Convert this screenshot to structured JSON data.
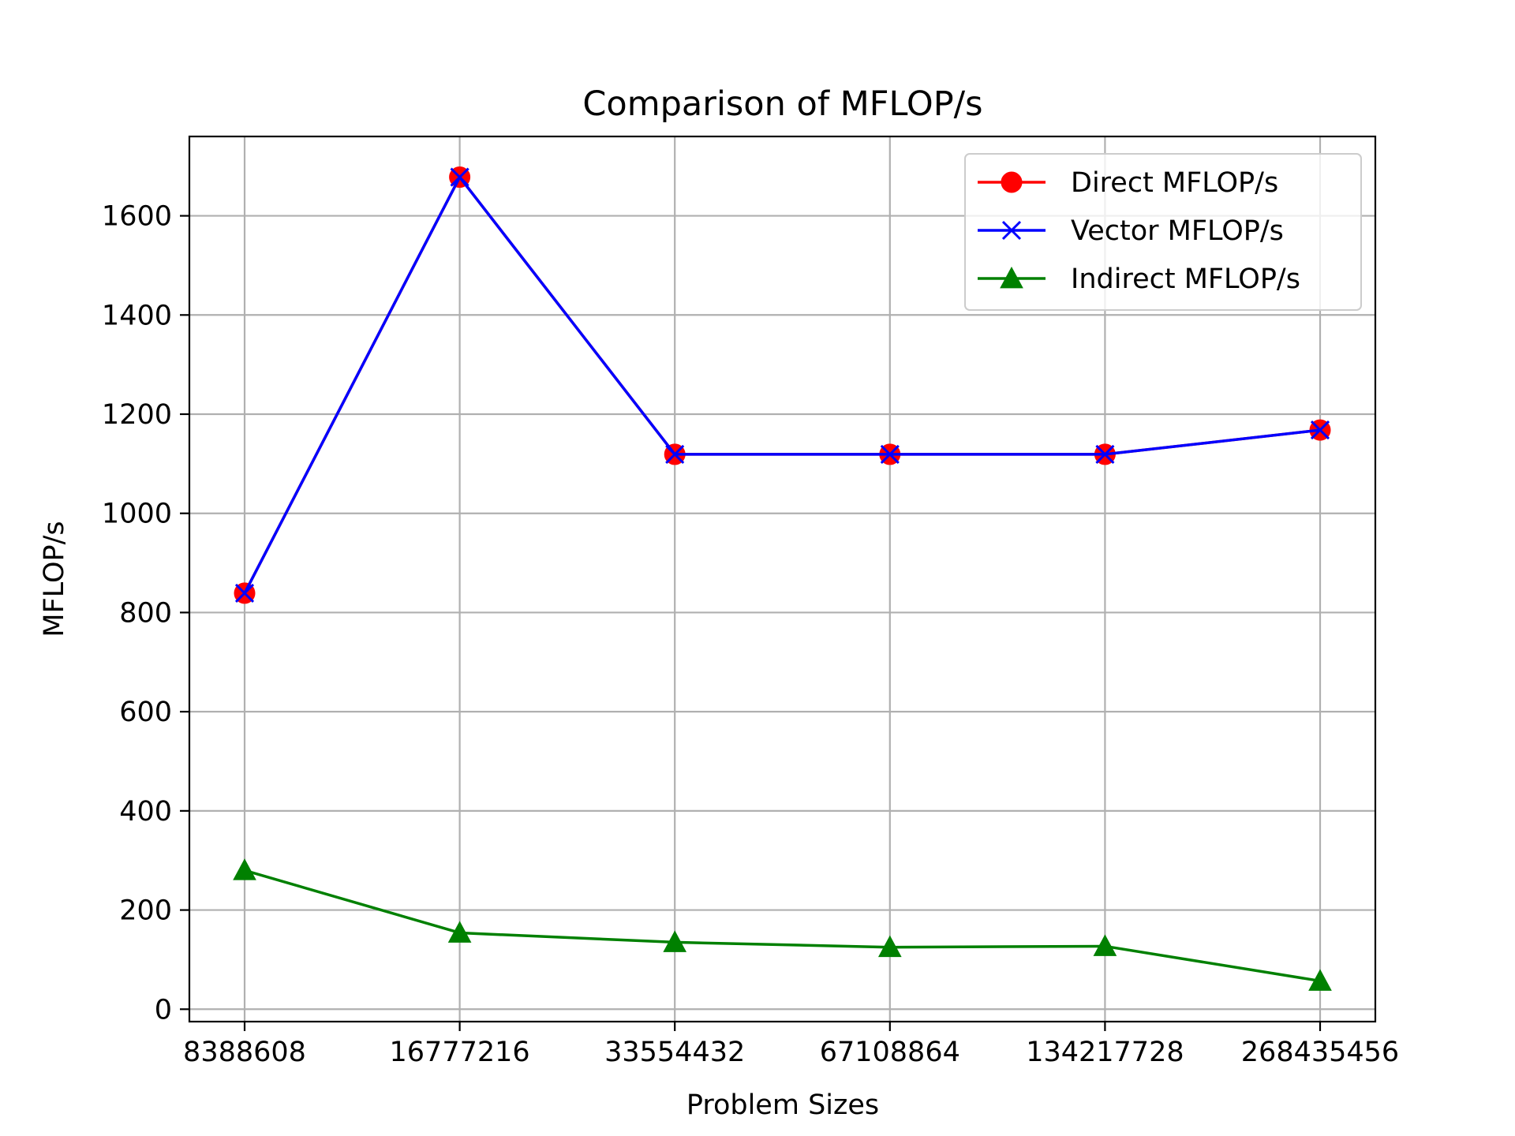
{
  "chart_data": {
    "type": "line",
    "title": "Comparison of MFLOP/s",
    "xlabel": "Problem Sizes",
    "ylabel": "MFLOP/s",
    "categories": [
      "8388608",
      "16777216",
      "33554432",
      "67108864",
      "134217728",
      "268435456"
    ],
    "ylim": [
      -25,
      1760
    ],
    "yticks": [
      0,
      200,
      400,
      600,
      800,
      1000,
      1200,
      1400,
      1600
    ],
    "grid": true,
    "legend_position": "top-right",
    "series": [
      {
        "name": "Direct MFLOP/s",
        "color": "#ff0000",
        "marker": "circle",
        "values": [
          839,
          1678,
          1119,
          1119,
          1119,
          1168
        ]
      },
      {
        "name": "Vector MFLOP/s",
        "color": "#0000ff",
        "marker": "x",
        "values": [
          839,
          1678,
          1119,
          1119,
          1119,
          1168
        ]
      },
      {
        "name": "Indirect MFLOP/s",
        "color": "#008000",
        "marker": "triangle",
        "values": [
          280,
          154,
          135,
          125,
          127,
          57
        ]
      }
    ]
  }
}
